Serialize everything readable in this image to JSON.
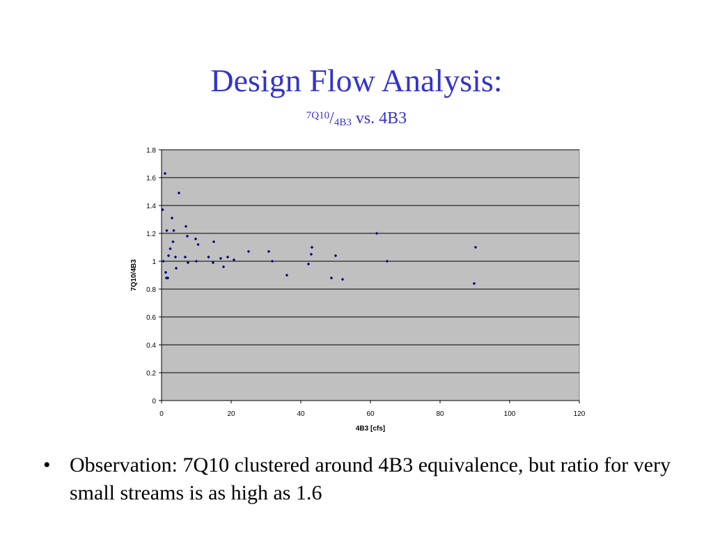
{
  "slide": {
    "title": "Design Flow Analysis:",
    "subtitle_numerator": "7Q10",
    "subtitle_slash": "/",
    "subtitle_denominator": "4B3",
    "subtitle_rest": " vs. 4B3",
    "bullet_symbol": "•",
    "bullet_text": "Observation: 7Q10 clustered around 4B3 equivalence, but ratio for very small streams is as high as 1.6"
  },
  "chart_data": {
    "type": "scatter",
    "title": "",
    "xlabel": "4B3 [cfs]",
    "ylabel": "7Q10/4B3",
    "xlim": [
      0,
      120
    ],
    "ylim": [
      0,
      1.8
    ],
    "xticks": [
      0,
      20,
      40,
      60,
      80,
      100,
      120
    ],
    "yticks": [
      0,
      0.2,
      0.4,
      0.6,
      0.8,
      1,
      1.2,
      1.4,
      1.6,
      1.8
    ],
    "grid": "horizontal",
    "plot_background": "#c0c0c0",
    "marker_color": "#000080",
    "series": [
      {
        "x": [
          0.3,
          0.5,
          1.0,
          1.2,
          1.4,
          1.5,
          1.8,
          2.0,
          2.5,
          3.0,
          3.3,
          3.5,
          4.0,
          4.2,
          5.0,
          6.8,
          7.0,
          7.4,
          7.6,
          9.8,
          10.0,
          10.5,
          13.5,
          14.8,
          15.0,
          17.0,
          17.8,
          19.0,
          20.8,
          25.0,
          30.8,
          31.8,
          36.0,
          42.2,
          43.0,
          43.2,
          48.8,
          50.0,
          52.0,
          61.8,
          64.8,
          89.8,
          90.2
        ],
        "y": [
          1.37,
          1.0,
          1.63,
          0.92,
          0.88,
          1.22,
          0.88,
          1.04,
          1.09,
          1.31,
          1.14,
          1.22,
          1.03,
          0.95,
          1.49,
          1.03,
          1.25,
          1.18,
          0.99,
          1.16,
          1.0,
          1.12,
          1.03,
          0.99,
          1.14,
          1.02,
          0.96,
          1.03,
          1.01,
          1.07,
          1.07,
          1.0,
          0.9,
          0.98,
          1.05,
          1.1,
          0.88,
          1.04,
          0.87,
          1.2,
          1.0,
          0.84,
          1.1
        ]
      }
    ]
  }
}
